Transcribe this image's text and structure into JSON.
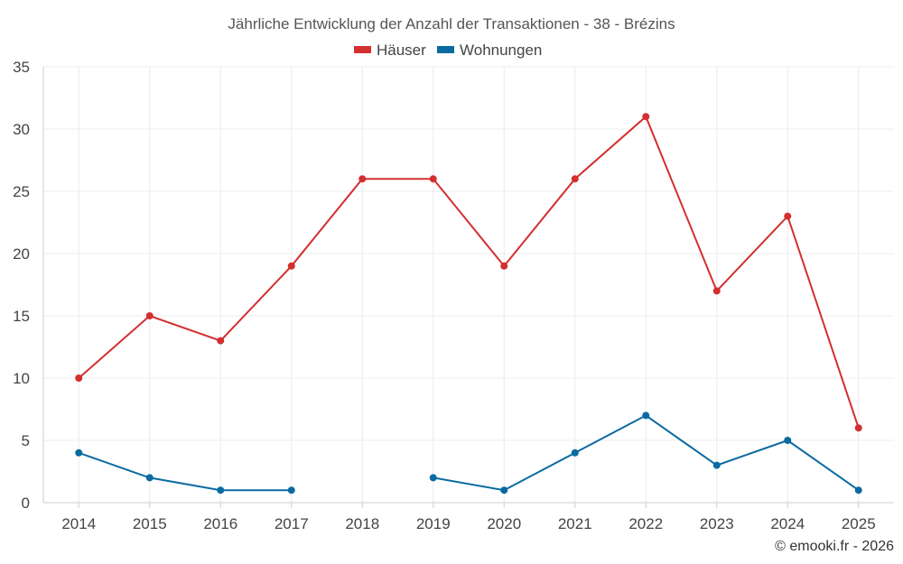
{
  "chart_data": {
    "type": "line",
    "title": "Jährliche Entwicklung der Anzahl der Transaktionen - 38 - Brézins",
    "xlabel": "",
    "ylabel": "",
    "categories": [
      "2014",
      "2015",
      "2016",
      "2017",
      "2018",
      "2019",
      "2020",
      "2021",
      "2022",
      "2023",
      "2024",
      "2025"
    ],
    "ylim": [
      0,
      35
    ],
    "yticks": [
      0,
      5,
      10,
      15,
      20,
      25,
      30,
      35
    ],
    "grid": true,
    "legend_position": "top-center",
    "series": [
      {
        "name": "Häuser",
        "color": "#d32f2f",
        "values": [
          10,
          15,
          13,
          19,
          26,
          26,
          19,
          26,
          31,
          17,
          23,
          6
        ]
      },
      {
        "name": "Wohnungen",
        "color": "#0a6aa1",
        "values": [
          4,
          2,
          1,
          1,
          null,
          2,
          1,
          4,
          7,
          3,
          5,
          1
        ]
      }
    ]
  },
  "credit": "© emooki.fr - 2026"
}
